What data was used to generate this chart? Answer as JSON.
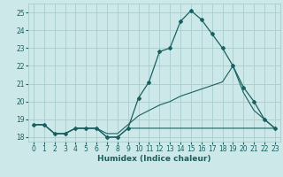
{
  "xlabel": "Humidex (Indice chaleur)",
  "xlim": [
    -0.5,
    23.5
  ],
  "ylim": [
    17.75,
    25.5
  ],
  "yticks": [
    18,
    19,
    20,
    21,
    22,
    23,
    24,
    25
  ],
  "xticks": [
    0,
    1,
    2,
    3,
    4,
    5,
    6,
    7,
    8,
    9,
    10,
    11,
    12,
    13,
    14,
    15,
    16,
    17,
    18,
    19,
    20,
    21,
    22,
    23
  ],
  "bg_color": "#cce8e8",
  "grid_color": "#aacccc",
  "line_color": "#1a6060",
  "line1_x": [
    0,
    1,
    2,
    3,
    4,
    5,
    6,
    7,
    8,
    9,
    10,
    11,
    12,
    13,
    14,
    15,
    16,
    17,
    18,
    19,
    20,
    21,
    22,
    23
  ],
  "line1_y": [
    18.7,
    18.7,
    18.2,
    18.2,
    18.5,
    18.5,
    18.5,
    18.0,
    18.0,
    18.5,
    20.2,
    21.1,
    22.8,
    23.0,
    24.5,
    25.1,
    24.6,
    23.8,
    23.0,
    22.0,
    20.8,
    20.0,
    19.0,
    18.5
  ],
  "line2_x": [
    0,
    1,
    2,
    3,
    4,
    5,
    6,
    7,
    8,
    9,
    10,
    11,
    12,
    13,
    14,
    15,
    16,
    17,
    18,
    19,
    20,
    21,
    22,
    23
  ],
  "line2_y": [
    18.7,
    18.7,
    18.2,
    18.2,
    18.5,
    18.5,
    18.5,
    18.2,
    18.2,
    18.7,
    19.2,
    19.5,
    19.8,
    20.0,
    20.3,
    20.5,
    20.7,
    20.9,
    21.1,
    22.0,
    20.5,
    19.5,
    19.0,
    18.5
  ],
  "line3_x": [
    0,
    1,
    2,
    3,
    4,
    5,
    6,
    7,
    8,
    9,
    10,
    11,
    12,
    13,
    14,
    15,
    16,
    17,
    18,
    19,
    20,
    21,
    22,
    23
  ],
  "line3_y": [
    18.7,
    18.7,
    18.2,
    18.2,
    18.5,
    18.5,
    18.5,
    18.0,
    18.0,
    18.5,
    18.5,
    18.5,
    18.5,
    18.5,
    18.5,
    18.5,
    18.5,
    18.5,
    18.5,
    18.5,
    18.5,
    18.5,
    18.5,
    18.5
  ]
}
